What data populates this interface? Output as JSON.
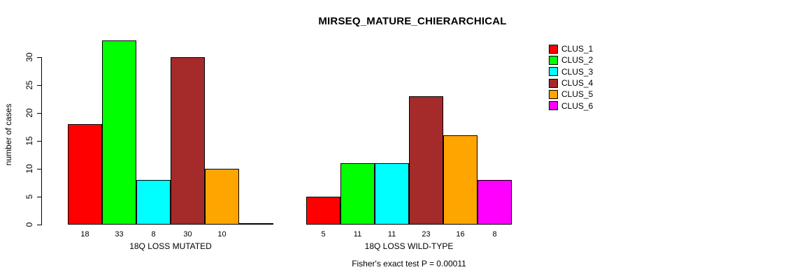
{
  "chart_data": {
    "type": "bar",
    "title": "MIRSEQ_MATURE_CHIERARCHICAL",
    "ylabel": "number of cases",
    "ylim": [
      0,
      33
    ],
    "yticks": [
      0,
      5,
      10,
      15,
      20,
      25,
      30
    ],
    "grid": false,
    "legend_position": "right",
    "clusters": [
      {
        "name": "CLUS_1",
        "color": "#FF0000"
      },
      {
        "name": "CLUS_2",
        "color": "#00FF00"
      },
      {
        "name": "CLUS_3",
        "color": "#00FFFF"
      },
      {
        "name": "CLUS_4",
        "color": "#A52A2A"
      },
      {
        "name": "CLUS_5",
        "color": "#FFA500"
      },
      {
        "name": "CLUS_6",
        "color": "#FF00FF"
      }
    ],
    "groups": [
      {
        "label": "18Q LOSS MUTATED",
        "values": [
          18,
          33,
          8,
          30,
          10,
          0
        ],
        "bar_labels": [
          "18",
          "33",
          "8",
          "30",
          "10",
          ""
        ]
      },
      {
        "label": "18Q LOSS WILD-TYPE",
        "values": [
          5,
          11,
          11,
          23,
          16,
          8
        ],
        "bar_labels": [
          "5",
          "11",
          "11",
          "23",
          "16",
          "8"
        ]
      }
    ],
    "footer": "Fisher's exact test P = 0.00011"
  }
}
